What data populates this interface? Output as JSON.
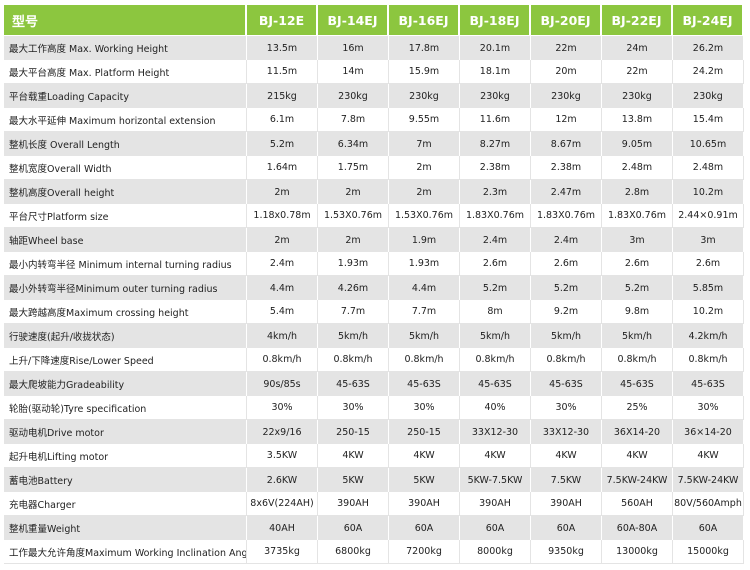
{
  "header": {
    "title": "型号",
    "models": [
      "BJ-12E",
      "BJ-14EJ",
      "BJ-16EJ",
      "BJ-18EJ",
      "BJ-20EJ",
      "BJ-22EJ",
      "BJ-24EJ"
    ]
  },
  "rows": [
    {
      "label": "最大工作高度 Max. Working Height",
      "values": [
        "13.5m",
        "16m",
        "17.8m",
        "20.1m",
        "22m",
        "24m",
        "26.2m"
      ]
    },
    {
      "label": "最大平台高度 Max. Platform Height",
      "values": [
        "11.5m",
        "14m",
        "15.9m",
        "18.1m",
        "20m",
        "22m",
        "24.2m"
      ]
    },
    {
      "label": "平台载重Loading Capacity",
      "values": [
        "215kg",
        "230kg",
        "230kg",
        "230kg",
        "230kg",
        "230kg",
        "230kg"
      ]
    },
    {
      "label": "最大水平延伸 Maximum horizontal extension",
      "values": [
        "6.1m",
        "7.8m",
        "9.55m",
        "11.6m",
        "12m",
        "13.8m",
        "15.4m"
      ]
    },
    {
      "label": "整机长度 Overall Length",
      "values": [
        "5.2m",
        "6.34m",
        "7m",
        "8.27m",
        "8.67m",
        "9.05m",
        "10.65m"
      ]
    },
    {
      "label": "整机宽度Overall Width",
      "values": [
        "1.64m",
        "1.75m",
        "2m",
        "2.38m",
        "2.38m",
        "2.48m",
        "2.48m"
      ]
    },
    {
      "label": "整机高度Overall height",
      "values": [
        "2m",
        "2m",
        "2m",
        "2.3m",
        "2.47m",
        "2.8m",
        "10.2m"
      ]
    },
    {
      "label": "平台尺寸Platform size",
      "values": [
        "1.18x0.78m",
        "1.53X0.76m",
        "1.53X0.76m",
        "1.83X0.76m",
        "1.83X0.76m",
        "1.83X0.76m",
        "2.44×0.91m"
      ]
    },
    {
      "label": "轴距Wheel base",
      "values": [
        "2m",
        "2m",
        "1.9m",
        "2.4m",
        "2.4m",
        "3m",
        "3m"
      ]
    },
    {
      "label": "最小内转弯半径 Minimum internal turning radius",
      "values": [
        "2.4m",
        "1.93m",
        "1.93m",
        "2.6m",
        "2.6m",
        "2.6m",
        "2.6m"
      ]
    },
    {
      "label": "最小外转弯半径Minimum outer turning radius",
      "values": [
        "4.4m",
        "4.26m",
        "4.4m",
        "5.2m",
        "5.2m",
        "5.2m",
        "5.85m"
      ]
    },
    {
      "label": "最大跨越高度Maximum crossing height",
      "values": [
        "5.4m",
        "7.7m",
        "7.7m",
        "8m",
        "9.2m",
        "9.8m",
        "10.2m"
      ]
    },
    {
      "label": "行驶速度(起升/收拢状态)",
      "values": [
        "4km/h",
        "5km/h",
        "5km/h",
        "5km/h",
        "5km/h",
        "5km/h",
        "4.2km/h"
      ]
    },
    {
      "label": "上升/下降速度Rise/Lower Speed",
      "values": [
        "0.8km/h",
        "0.8km/h",
        "0.8km/h",
        "0.8km/h",
        "0.8km/h",
        "0.8km/h",
        "0.8km/h"
      ]
    },
    {
      "label": "最大爬坡能力Gradeability",
      "values": [
        "90s/85s",
        "45-63S",
        "45-63S",
        "45-63S",
        "45-63S",
        "45-63S",
        "45-63S"
      ]
    },
    {
      "label": "轮胎(驱动轮)Tyre specification",
      "values": [
        "30%",
        "30%",
        "30%",
        "40%",
        "30%",
        "25%",
        "30%"
      ]
    },
    {
      "label": "驱动电机Drive motor",
      "values": [
        "22x9/16",
        "250-15",
        "250-15",
        "33X12-30",
        "33X12-30",
        "36X14-20",
        "36×14-20"
      ]
    },
    {
      "label": "起升电机Lifting motor",
      "values": [
        "3.5KW",
        "4KW",
        "4KW",
        "4KW",
        "4KW",
        "4KW",
        "4KW"
      ]
    },
    {
      "label": "蓄电池Battery",
      "values": [
        "2.6KW",
        "5KW",
        "5KW",
        "5KW-7.5KW",
        "7.5KW",
        "7.5KW-24KW",
        "7.5KW-24KW"
      ]
    },
    {
      "label": "充电器Charger",
      "values": [
        "8x6V(224AH)",
        "390AH",
        "390AH",
        "390AH",
        "390AH",
        "560AH",
        "80V/560Amph"
      ]
    },
    {
      "label": "整机重量Weight",
      "values": [
        "40AH",
        "60A",
        "60A",
        "60A",
        "60A",
        "60A-80A",
        "60A"
      ]
    },
    {
      "label": "工作最大允许角度Maximum Working Inclination Angle",
      "values": [
        "3735kg",
        "6800kg",
        "7200kg",
        "8000kg",
        "9350kg",
        "13000kg",
        "15000kg"
      ]
    }
  ]
}
